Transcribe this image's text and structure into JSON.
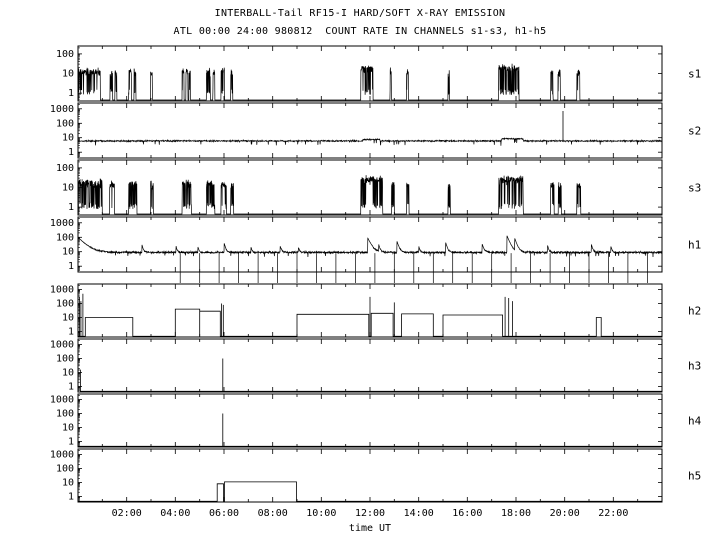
{
  "chart_data": {
    "type": "line",
    "title": "INTERBALL-Tail RF15-I HARD/SOFT X-RAY EMISSION",
    "subtitle": "ATL 00:00 24:00 980812  COUNT RATE IN CHANNELS s1-s3, h1-h5",
    "xlabel": "time UT",
    "x_range_hours": [
      0,
      24
    ],
    "x_ticks": [
      {
        "hour": 2,
        "label": "02:00"
      },
      {
        "hour": 4,
        "label": "04:00"
      },
      {
        "hour": 6,
        "label": "06:00"
      },
      {
        "hour": 8,
        "label": "08:00"
      },
      {
        "hour": 10,
        "label": "10:00"
      },
      {
        "hour": 12,
        "label": "12:00"
      },
      {
        "hour": 14,
        "label": "14:00"
      },
      {
        "hour": 16,
        "label": "16:00"
      },
      {
        "hour": 18,
        "label": "18:00"
      },
      {
        "hour": 20,
        "label": "20:00"
      },
      {
        "hour": 22,
        "label": "22:00"
      }
    ],
    "y_scale": "log",
    "line_color": "#000000",
    "panels": [
      {
        "label": "s1",
        "yticks": [
          100,
          10,
          1
        ],
        "decades": [
          -0.4,
          2.4
        ],
        "model": {
          "kind": "burst",
          "off": 0.45,
          "bursts": [
            [
              0.02,
              0.92,
              12
            ],
            [
              1.32,
              1.42,
              10
            ],
            [
              1.52,
              1.6,
              10
            ],
            [
              2.08,
              2.2,
              12
            ],
            [
              2.3,
              2.38,
              10
            ],
            [
              2.98,
              3.06,
              10
            ],
            [
              4.28,
              4.36,
              12
            ],
            [
              4.44,
              4.52,
              12
            ],
            [
              4.56,
              4.62,
              10
            ],
            [
              5.28,
              5.44,
              12
            ],
            [
              5.54,
              5.62,
              10
            ],
            [
              5.88,
              6.02,
              12
            ],
            [
              6.28,
              6.36,
              10
            ],
            [
              11.62,
              12.12,
              18
            ],
            [
              12.82,
              12.88,
              12
            ],
            [
              13.5,
              13.58,
              10
            ],
            [
              15.2,
              15.27,
              10
            ],
            [
              17.28,
              18.12,
              18
            ],
            [
              19.42,
              19.52,
              12
            ],
            [
              19.72,
              19.82,
              12
            ],
            [
              20.5,
              20.62,
              10
            ]
          ]
        }
      },
      {
        "label": "s2",
        "yticks": [
          1000,
          100,
          10,
          1
        ],
        "decades": [
          -0.4,
          3.4
        ],
        "model": {
          "kind": "noisy",
          "base": 6,
          "sigma": 0.045,
          "bumps": [
            [
              11.7,
              12.4,
              1.25
            ],
            [
              17.4,
              18.3,
              1.4
            ]
          ],
          "spikes": [
            [
              19.93,
              700
            ]
          ]
        }
      },
      {
        "label": "s3",
        "yticks": [
          100,
          10,
          1
        ],
        "decades": [
          -0.4,
          2.4
        ],
        "model": {
          "kind": "burst",
          "off": 0.45,
          "bursts": [
            [
              0.02,
              1.0,
              16
            ],
            [
              1.3,
              1.5,
              14
            ],
            [
              2.08,
              2.42,
              16
            ],
            [
              2.98,
              3.1,
              12
            ],
            [
              4.28,
              4.66,
              16
            ],
            [
              5.28,
              5.62,
              14
            ],
            [
              5.88,
              6.1,
              14
            ],
            [
              6.28,
              6.4,
              12
            ],
            [
              11.62,
              12.52,
              24
            ],
            [
              12.88,
              13.0,
              14
            ],
            [
              13.5,
              13.6,
              12
            ],
            [
              15.2,
              15.3,
              12
            ],
            [
              17.28,
              18.3,
              24
            ],
            [
              19.42,
              19.56,
              14
            ],
            [
              19.74,
              19.86,
              12
            ],
            [
              20.5,
              20.66,
              12
            ]
          ]
        }
      },
      {
        "label": "h1",
        "yticks": [
          1000,
          100,
          10,
          1
        ],
        "decades": [
          -0.4,
          3.4
        ],
        "model": {
          "kind": "noisy",
          "base": 9,
          "sigma": 0.07,
          "decays": [
            [
              0,
              90,
              0.25
            ],
            [
              2.62,
              25,
              0.05
            ],
            [
              4.02,
              20,
              0.04
            ],
            [
              4.92,
              15,
              0.04
            ],
            [
              6.0,
              35,
              0.05
            ],
            [
              7.1,
              15,
              0.04
            ],
            [
              8.3,
              18,
              0.05
            ],
            [
              9.05,
              14,
              0.04
            ],
            [
              11.9,
              85,
              0.12
            ],
            [
              12.35,
              25,
              0.05
            ],
            [
              13.1,
              50,
              0.07
            ],
            [
              14.0,
              18,
              0.04
            ],
            [
              15.1,
              40,
              0.06
            ],
            [
              16.6,
              30,
              0.06
            ],
            [
              17.62,
              130,
              0.1
            ],
            [
              17.95,
              70,
              0.08
            ],
            [
              19.3,
              18,
              0.04
            ],
            [
              21.1,
              22,
              0.05
            ],
            [
              21.9,
              14,
              0.04
            ]
          ],
          "dropouts": [
            4.2,
            5.0,
            5.8,
            6.6,
            7.4,
            8.2,
            9.0,
            9.8,
            10.6,
            11.4,
            12.2,
            13.0,
            13.8,
            14.6,
            15.4,
            16.2,
            17.0,
            17.8,
            18.6,
            19.4,
            20.2,
            21.0,
            21.8,
            22.6,
            23.4
          ]
        }
      },
      {
        "label": "h2",
        "yticks": [
          1000,
          100,
          10,
          1
        ],
        "decades": [
          -0.4,
          3.4
        ],
        "model": {
          "kind": "step",
          "off": 0.45,
          "steps": [
            [
              0.3,
              2.25,
              10
            ],
            [
              4.0,
              5.0,
              40
            ],
            [
              5.0,
              5.85,
              28
            ],
            [
              9.0,
              11.95,
              17
            ],
            [
              12.05,
              12.95,
              20
            ],
            [
              13.3,
              14.6,
              18
            ],
            [
              15.0,
              17.45,
              15
            ],
            [
              21.3,
              21.5,
              10
            ]
          ],
          "spikes": [
            [
              0.06,
              300
            ],
            [
              0.12,
              150
            ],
            [
              0.2,
              500
            ],
            [
              5.9,
              100
            ],
            [
              5.97,
              80
            ],
            [
              12.0,
              300
            ],
            [
              13.0,
              120
            ],
            [
              17.55,
              300
            ],
            [
              17.7,
              250
            ],
            [
              17.85,
              150
            ]
          ]
        }
      },
      {
        "label": "h3",
        "yticks": [
          1000,
          100,
          10,
          1
        ],
        "decades": [
          -0.4,
          3.4
        ],
        "model": {
          "kind": "step",
          "off": 0.45,
          "steps": [
            [
              0.0,
              0.1,
              15
            ]
          ],
          "spikes": [
            [
              5.95,
              100
            ]
          ]
        }
      },
      {
        "label": "h4",
        "yticks": [
          1000,
          100,
          10,
          1
        ],
        "decades": [
          -0.4,
          3.4
        ],
        "model": {
          "kind": "step",
          "off": 0.45,
          "steps": [],
          "spikes": [
            [
              5.95,
              100
            ]
          ]
        }
      },
      {
        "label": "h5",
        "yticks": [
          1000,
          100,
          10,
          1
        ],
        "decades": [
          -0.4,
          3.4
        ],
        "model": {
          "kind": "step",
          "off": 0.45,
          "steps": [
            [
              5.72,
              5.98,
              8
            ],
            [
              6.02,
              8.98,
              11
            ]
          ],
          "spikes": []
        }
      }
    ]
  }
}
